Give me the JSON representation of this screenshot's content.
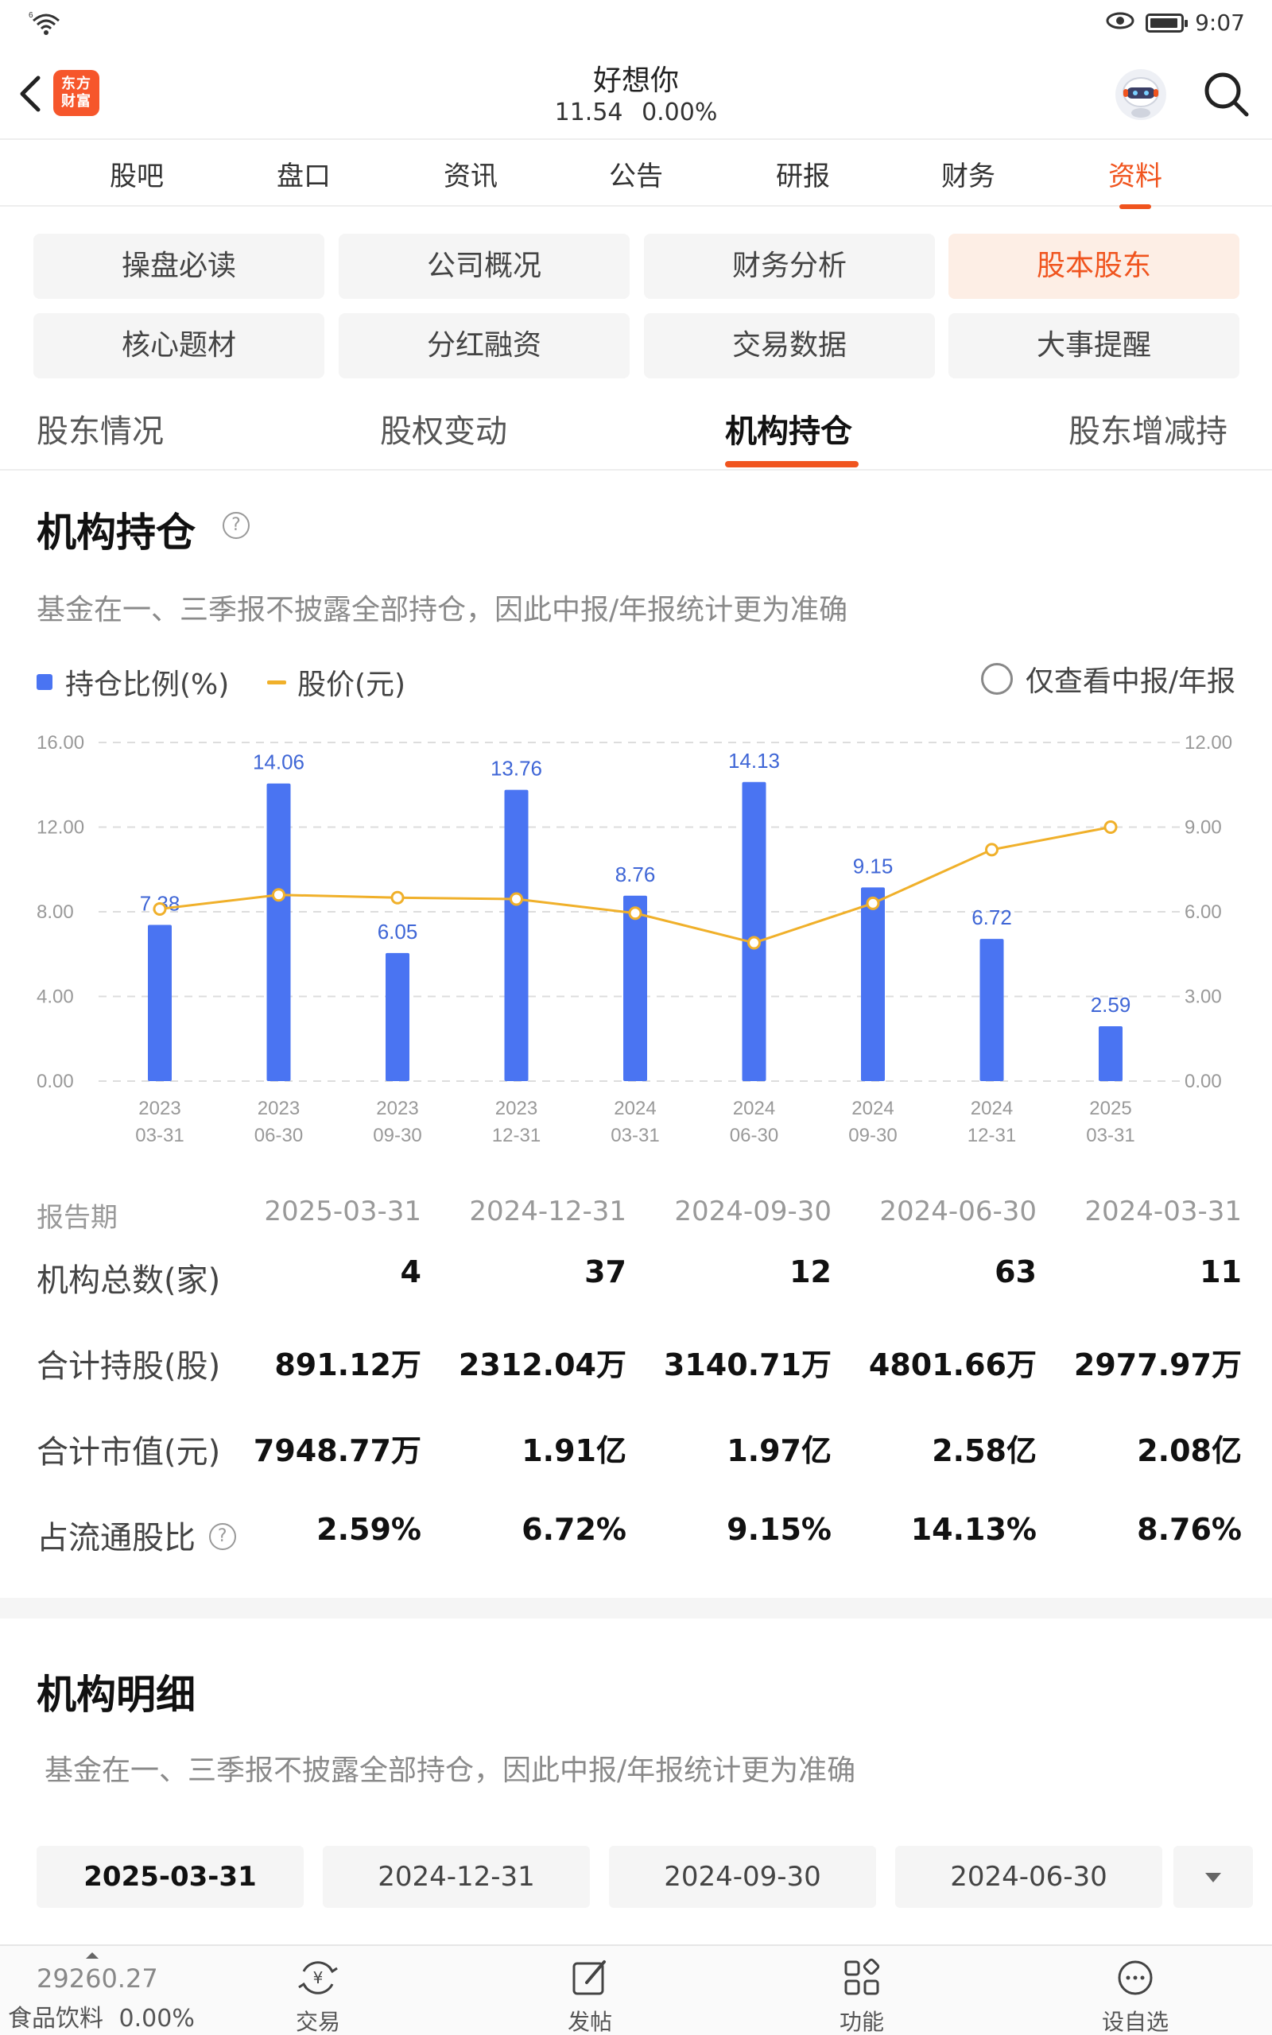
{
  "status": {
    "time": "9:07",
    "signal": "6"
  },
  "header": {
    "logo_text": "东方财富",
    "stock_name": "好想你",
    "price": "11.54",
    "change": "0.00%"
  },
  "main_tabs": [
    "股吧",
    "盘口",
    "资讯",
    "公告",
    "研报",
    "财务",
    "资料"
  ],
  "grid_buttons": [
    "操盘必读",
    "公司概况",
    "财务分析",
    "股本股东",
    "核心题材",
    "分红融资",
    "交易数据",
    "大事提醒"
  ],
  "sub_tabs": [
    "股东情况",
    "股权变动",
    "机构持仓",
    "股东增减持"
  ],
  "section1": {
    "title": "机构持仓",
    "note": "基金在一、三季报不披露全部持仓，因此中报/年报统计更为准确",
    "legend_bar": "持仓比例(%)",
    "legend_line": "股价(元)",
    "filter_label": "仅查看中报/年报"
  },
  "chart_data": {
    "type": "bar",
    "categories": [
      "2023-03-31",
      "2023-06-30",
      "2023-09-30",
      "2023-12-31",
      "2024-03-31",
      "2024-06-30",
      "2024-09-30",
      "2024-12-31",
      "2025-03-31"
    ],
    "x_years": [
      "2023",
      "2023",
      "2023",
      "2023",
      "2024",
      "2024",
      "2024",
      "2024",
      "2025"
    ],
    "x_dates": [
      "03-31",
      "06-30",
      "09-30",
      "12-31",
      "03-31",
      "06-30",
      "09-30",
      "12-31",
      "03-31"
    ],
    "series": [
      {
        "name": "持仓比例(%)",
        "type": "bar",
        "axis": "left",
        "color": "#4a74f2",
        "values": [
          7.38,
          14.06,
          6.05,
          13.76,
          8.76,
          14.13,
          9.15,
          6.72,
          2.59
        ]
      },
      {
        "name": "股价(元)",
        "type": "line",
        "axis": "right",
        "color": "#f0b02a",
        "values": [
          6.1,
          6.6,
          6.5,
          6.45,
          5.95,
          4.9,
          6.3,
          8.2,
          9.0
        ]
      }
    ],
    "left_ticks": [
      "16.00",
      "12.00",
      "8.00",
      "4.00",
      "0.00"
    ],
    "right_ticks": [
      "12.00",
      "9.00",
      "6.00",
      "3.00",
      "0.00"
    ],
    "ylim_left": [
      0,
      16
    ],
    "ylim_right": [
      0,
      12
    ],
    "grid": true
  },
  "table": {
    "header_label": "报告期",
    "periods": [
      "2025-03-31",
      "2024-12-31",
      "2024-09-30",
      "2024-06-30",
      "2024-03-31"
    ],
    "rows": [
      {
        "label": "机构总数(家)",
        "values": [
          "4",
          "37",
          "12",
          "63",
          "11"
        ]
      },
      {
        "label": "合计持股(股)",
        "values": [
          "891.12万",
          "2312.04万",
          "3140.71万",
          "4801.66万",
          "2977.97万"
        ]
      },
      {
        "label": "合计市值(元)",
        "values": [
          "7948.77万",
          "1.91亿",
          "1.97亿",
          "2.58亿",
          "2.08亿"
        ]
      },
      {
        "label": "占流通股比",
        "values": [
          "2.59%",
          "6.72%",
          "9.15%",
          "14.13%",
          "8.76%"
        ]
      }
    ]
  },
  "section2": {
    "title": "机构明细",
    "note": "基金在一、三季报不披露全部持仓，因此中报/年报统计更为准确",
    "dates": [
      "2025-03-31",
      "2024-12-31",
      "2024-09-30",
      "2024-06-30"
    ]
  },
  "bottom_bar": {
    "index_value": "29260.27",
    "index_name": "食品饮料",
    "index_change": "0.00%",
    "items": [
      "交易",
      "发帖",
      "功能",
      "设自选"
    ]
  },
  "colors": {
    "accent": "#f0541e",
    "bar": "#4a74f2",
    "line": "#f0b02a"
  }
}
